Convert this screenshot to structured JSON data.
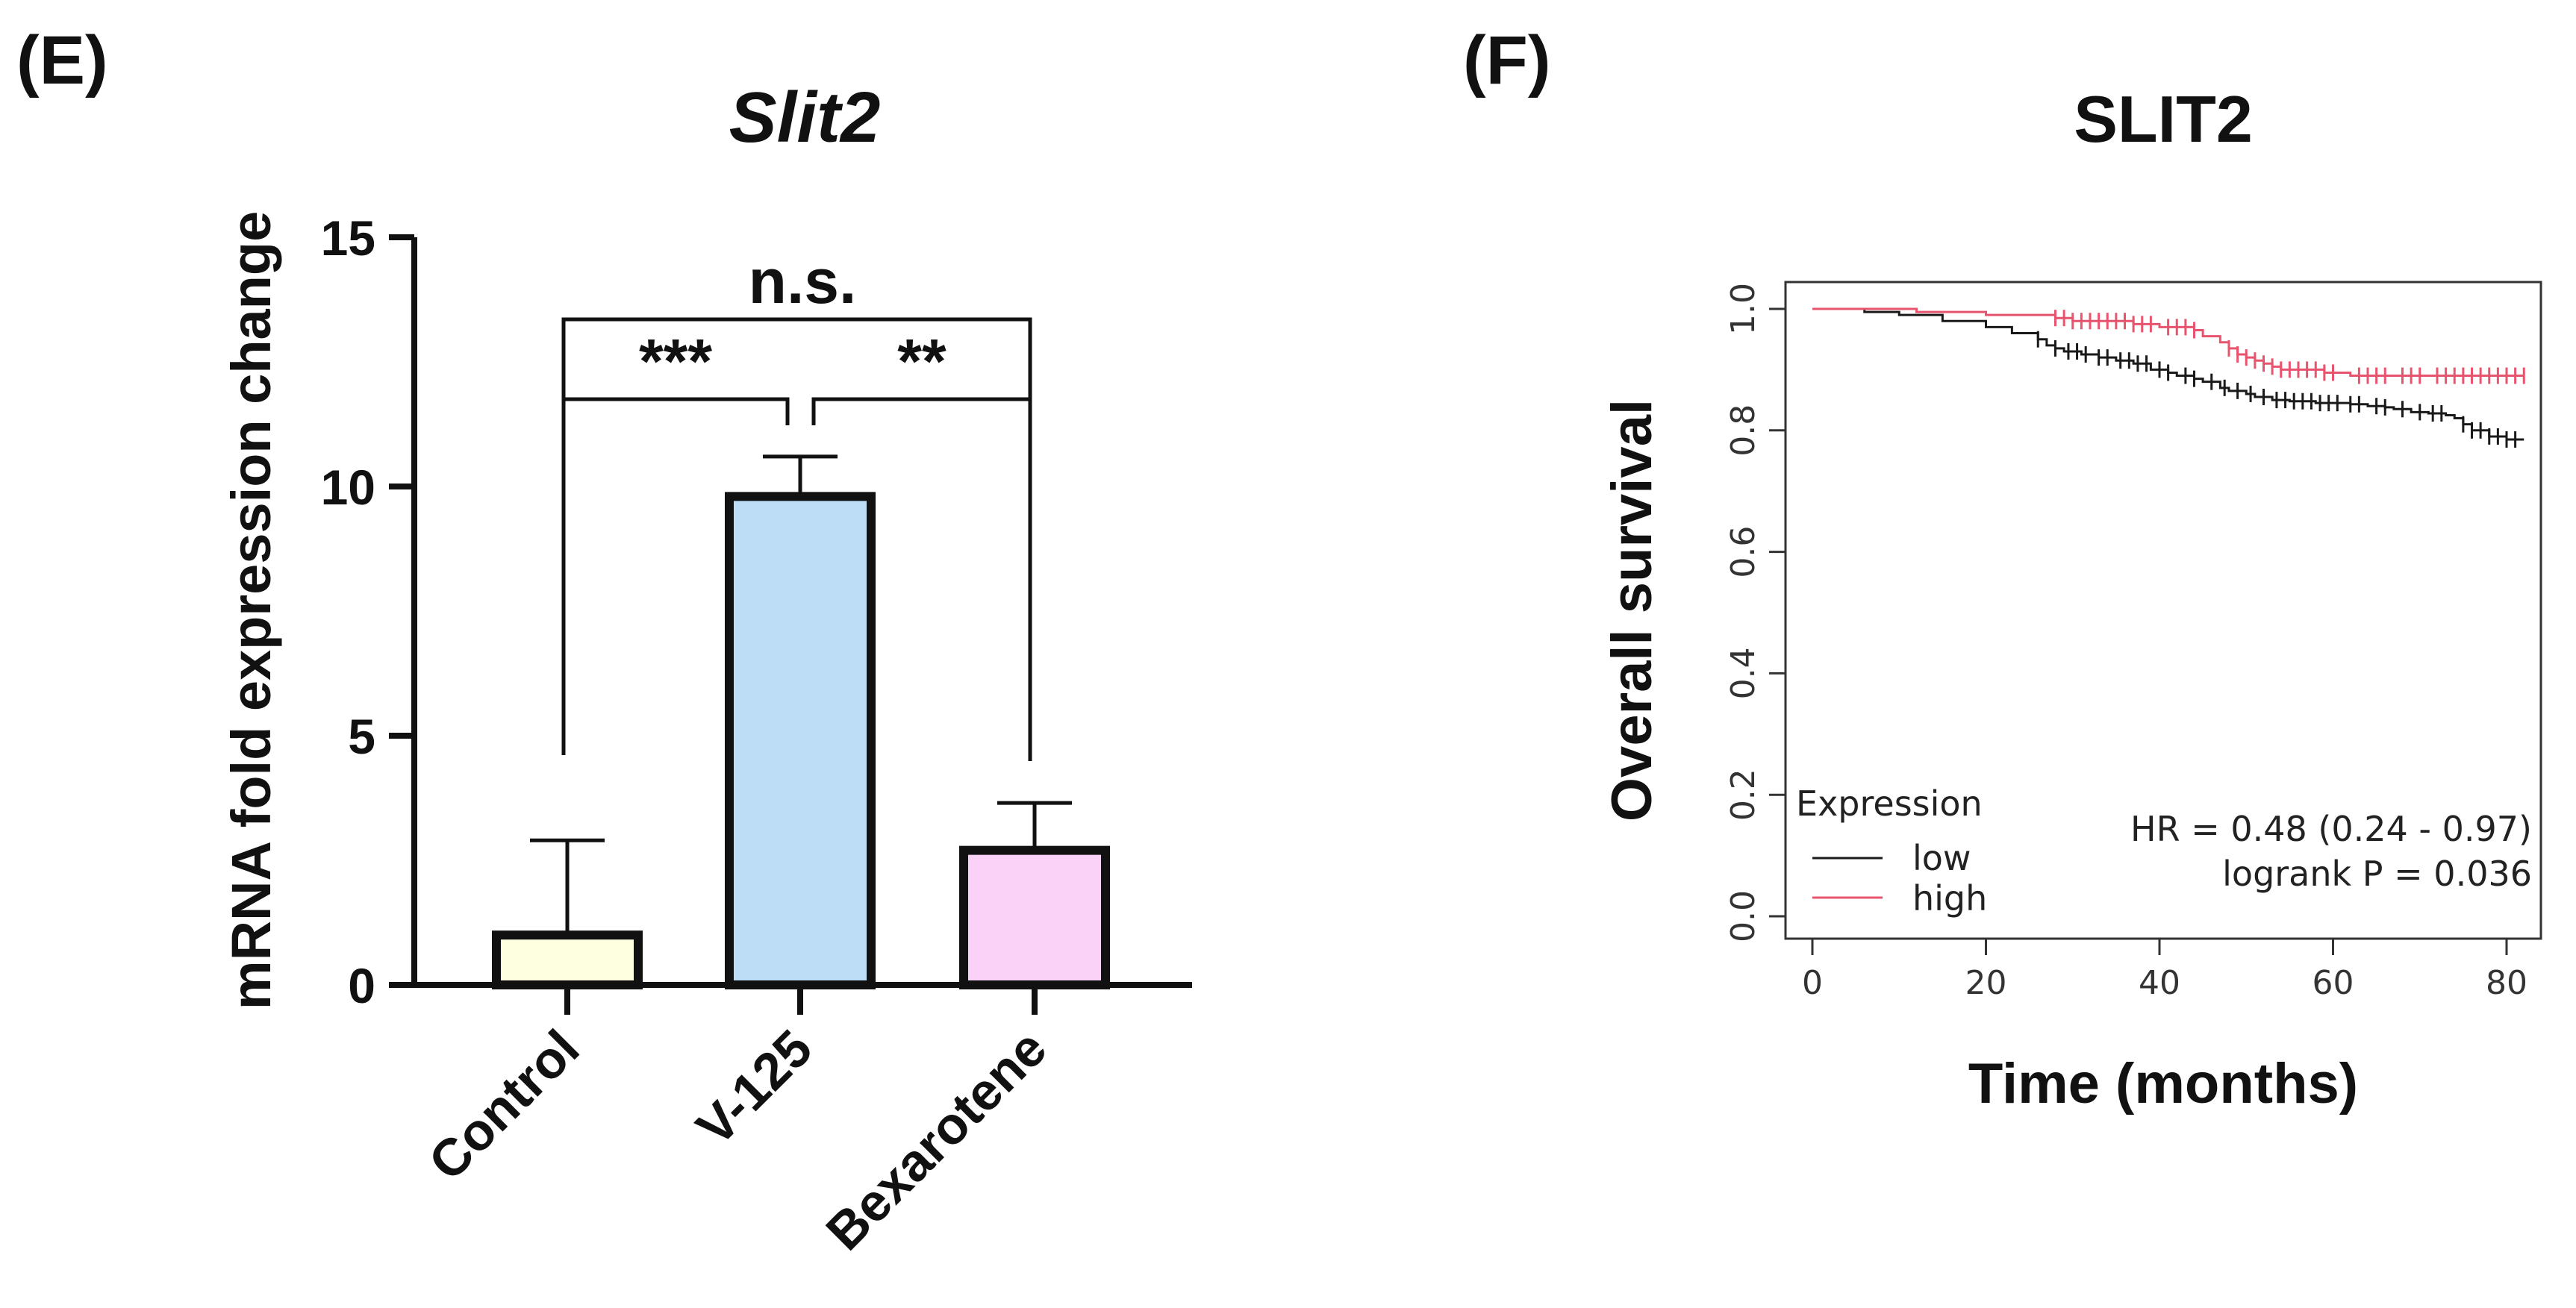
{
  "figure": {
    "panel_e_label": "(E)",
    "panel_f_label": "(F)"
  },
  "chart_data": [
    {
      "type": "bar",
      "title": "Slit2",
      "xlabel": "",
      "ylabel": "mRNA fold expression change",
      "ylim": [
        0,
        15
      ],
      "yticks": [
        0,
        5,
        10,
        15
      ],
      "categories": [
        "Control",
        "V-125",
        "Bexarotene"
      ],
      "values": [
        1.0,
        9.8,
        2.7
      ],
      "error_upper": [
        2.9,
        10.6,
        3.65
      ],
      "colors": [
        "#FEFEE0",
        "#BDDDF7",
        "#FAD2F8"
      ],
      "significance": [
        {
          "from": 0,
          "to": 2,
          "label": "n.s."
        },
        {
          "from": 0,
          "to": 1,
          "label": "***"
        },
        {
          "from": 1,
          "to": 2,
          "label": "**"
        }
      ]
    },
    {
      "type": "line",
      "subtype": "kaplan-meier",
      "title": "SLIT2",
      "xlabel": "Time (months)",
      "ylabel": "Overall survival",
      "xlim": [
        0,
        82
      ],
      "ylim": [
        0,
        1
      ],
      "xticks": [
        0,
        20,
        40,
        60,
        80
      ],
      "yticks": [
        "0.0",
        "0.2",
        "0.4",
        "0.6",
        "0.8",
        "1.0"
      ],
      "legend_title": "Expression",
      "series": [
        {
          "name": "low",
          "color": "#1a1a1a",
          "x": [
            0,
            6,
            10,
            15,
            20,
            23,
            26,
            27,
            28,
            29,
            31,
            33,
            35,
            37,
            39,
            41,
            42,
            44,
            45,
            47,
            48,
            50,
            51,
            53,
            55,
            58,
            62,
            64,
            66,
            67,
            69,
            71,
            73,
            74,
            75,
            76,
            78,
            80,
            82
          ],
          "y": [
            1.0,
            0.995,
            0.99,
            0.98,
            0.97,
            0.96,
            0.95,
            0.94,
            0.935,
            0.93,
            0.925,
            0.92,
            0.915,
            0.91,
            0.9,
            0.895,
            0.89,
            0.885,
            0.88,
            0.87,
            0.865,
            0.86,
            0.855,
            0.85,
            0.848,
            0.845,
            0.843,
            0.84,
            0.838,
            0.835,
            0.83,
            0.828,
            0.825,
            0.82,
            0.81,
            0.8,
            0.79,
            0.785,
            0.785
          ],
          "censor_x": [
            26,
            28,
            29.5,
            30.5,
            31.5,
            33,
            34,
            35.5,
            36.5,
            37.5,
            38.5,
            40,
            41,
            43,
            44,
            46,
            47.5,
            49,
            50.5,
            52,
            53.5,
            54.5,
            55.5,
            56.5,
            57.5,
            58.5,
            59.5,
            60.5,
            62,
            63,
            65,
            66,
            68,
            70,
            71.5,
            72.5,
            75,
            76,
            77,
            78,
            79,
            80,
            81
          ]
        },
        {
          "name": "high",
          "color": "#E8536E",
          "x": [
            0,
            10,
            12,
            20,
            28,
            30,
            37,
            40,
            44,
            45,
            47,
            48,
            49,
            50,
            51,
            52,
            53,
            54,
            56,
            59,
            61,
            62,
            82
          ],
          "y": [
            1.0,
            1.0,
            0.995,
            0.99,
            0.985,
            0.98,
            0.975,
            0.97,
            0.965,
            0.955,
            0.945,
            0.935,
            0.925,
            0.92,
            0.915,
            0.91,
            0.905,
            0.9,
            0.9,
            0.895,
            0.895,
            0.89,
            0.89
          ],
          "censor_x": [
            28,
            29,
            30,
            31,
            32,
            33,
            34,
            35,
            36,
            37,
            38,
            39,
            41,
            42,
            43,
            44,
            48,
            49,
            50,
            51,
            52,
            53,
            54,
            55,
            56,
            57,
            58,
            59,
            60,
            63,
            64,
            65,
            66,
            68,
            69,
            70,
            72,
            73,
            74,
            75,
            76,
            77,
            78,
            79,
            80,
            81,
            82
          ]
        }
      ],
      "annotation": {
        "hr": "HR = 0.48 (0.24 - 0.97)",
        "logrank": "logrank P = 0.036"
      }
    }
  ]
}
